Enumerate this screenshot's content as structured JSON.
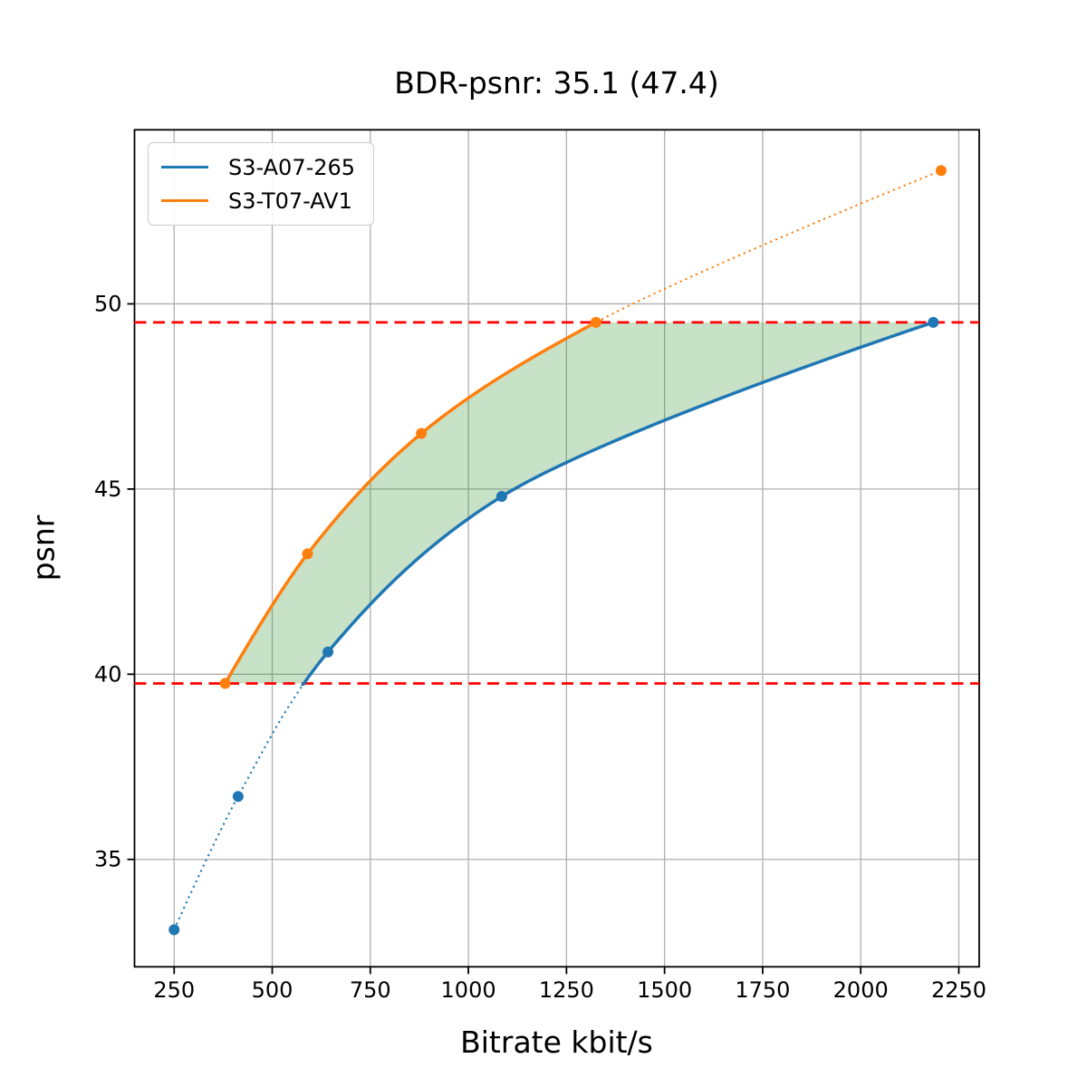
{
  "chart_data": {
    "type": "line",
    "title": "BDR-psnr: 35.1 (47.4)",
    "xlabel": "Bitrate kbit/s",
    "ylabel": "psnr",
    "xlim": [
      149,
      2302
    ],
    "ylim": [
      32.1,
      54.7
    ],
    "xticks": [
      250,
      500,
      750,
      1000,
      1250,
      1500,
      1750,
      2000,
      2250
    ],
    "yticks": [
      35,
      40,
      45,
      50
    ],
    "grid": true,
    "grid_color": "#b0b0b0",
    "legend_position": "upper-left",
    "series": [
      {
        "name": "S3-A07-265",
        "color": "#1f77b4",
        "x": [
          250,
          413,
          642,
          1085,
          2185
        ],
        "y": [
          33.1,
          36.7,
          40.6,
          44.8,
          49.5
        ],
        "line_style": "solid inside overlap band, dotted outside"
      },
      {
        "name": "S3-T07-AV1",
        "color": "#ff7f0e",
        "x": [
          380,
          590,
          880,
          1325,
          2205
        ],
        "y": [
          39.75,
          43.25,
          46.5,
          49.5,
          53.6
        ],
        "line_style": "solid inside overlap band, dotted outside"
      }
    ],
    "hlines": {
      "values": [
        39.75,
        49.5
      ],
      "color": "#ff0000",
      "style": "dashed",
      "meaning": "psnr overlap interval used for BD computation"
    },
    "fill_between": {
      "band": [
        39.75,
        49.5
      ],
      "color": "#228B22",
      "alpha": 0.25,
      "between": [
        "S3-T07-AV1",
        "S3-A07-265"
      ]
    }
  }
}
